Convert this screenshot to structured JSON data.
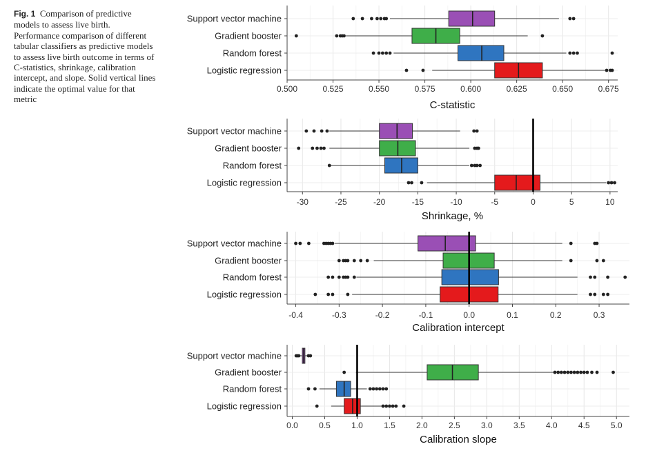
{
  "caption": {
    "label": "Fig. 1",
    "text": "Comparison of predictive models to assess live birth. Performance comparison of different tabular classifiers as predictive models to assess live birth outcome in terms of C-statistics, shrinkage, calibration intercept, and slope. Solid vertical lines indicate the optimal value for that metric"
  },
  "colors": {
    "Support vector machine": "#9a4fb5",
    "Gradient booster": "#3fae49",
    "Random forest": "#2f75c0",
    "Logistic regression": "#e41a1c"
  },
  "chart_data": [
    {
      "type": "boxplot",
      "xlabel": "C-statistic",
      "xlim": [
        0.5,
        0.68
      ],
      "ticks": [
        0.5,
        0.525,
        0.55,
        0.575,
        0.6,
        0.625,
        0.65,
        0.675
      ],
      "tick_labels": [
        "0.500",
        "0.525",
        "0.550",
        "0.575",
        "0.600",
        "0.625",
        "0.650",
        "0.675"
      ],
      "ref_line": null,
      "categories": [
        "Support vector machine",
        "Gradient booster",
        "Random forest",
        "Logistic regression"
      ],
      "series": [
        {
          "category": "Support vector machine",
          "whisker_low": 0.556,
          "q1": 0.588,
          "median": 0.601,
          "q3": 0.613,
          "whisker_high": 0.648,
          "outliers": [
            0.536,
            0.541,
            0.546,
            0.549,
            0.551,
            0.553,
            0.554,
            0.654,
            0.656
          ]
        },
        {
          "category": "Gradient booster",
          "whisker_low": 0.532,
          "q1": 0.568,
          "median": 0.581,
          "q3": 0.594,
          "whisker_high": 0.631,
          "outliers": [
            0.505,
            0.527,
            0.529,
            0.53,
            0.531,
            0.639
          ]
        },
        {
          "category": "Random forest",
          "whisker_low": 0.558,
          "q1": 0.593,
          "median": 0.606,
          "q3": 0.618,
          "whisker_high": 0.652,
          "outliers": [
            0.547,
            0.55,
            0.552,
            0.554,
            0.556,
            0.654,
            0.656,
            0.658,
            0.677
          ]
        },
        {
          "category": "Logistic regression",
          "whisker_low": 0.579,
          "q1": 0.613,
          "median": 0.626,
          "q3": 0.639,
          "whisker_high": 0.673,
          "outliers": [
            0.565,
            0.574,
            0.674,
            0.676,
            0.677
          ]
        }
      ]
    },
    {
      "type": "boxplot",
      "xlabel": "Shrinkage, %",
      "xlim": [
        -32,
        11
      ],
      "ticks": [
        -30,
        -25,
        -20,
        -15,
        -10,
        -5,
        0,
        5,
        10
      ],
      "tick_labels": [
        "-30",
        "-25",
        "-20",
        "-15",
        "-10",
        "-5",
        "0",
        "5",
        "10"
      ],
      "ref_line": 0,
      "categories": [
        "Support vector machine",
        "Gradient booster",
        "Random forest",
        "Logistic regression"
      ],
      "series": [
        {
          "category": "Support vector machine",
          "whisker_low": -26.5,
          "q1": -20,
          "median": -17.7,
          "q3": -15.7,
          "whisker_high": -9.5,
          "outliers": [
            -29.5,
            -28.5,
            -27.5,
            -26.8,
            -7.7,
            -7.3
          ]
        },
        {
          "category": "Gradient booster",
          "whisker_low": -26.5,
          "q1": -20,
          "median": -17.6,
          "q3": -15.3,
          "whisker_high": -8.3,
          "outliers": [
            -30.5,
            -28.7,
            -28.1,
            -27.6,
            -27.2,
            -7.6,
            -7.3,
            -7.1
          ]
        },
        {
          "category": "Random forest",
          "whisker_low": -26.5,
          "q1": -19.3,
          "median": -17.1,
          "q3": -15,
          "whisker_high": -8.3,
          "outliers": [
            -26.5,
            -8,
            -7.6,
            -7.3,
            -6.9
          ]
        },
        {
          "category": "Logistic regression",
          "whisker_low": -13.8,
          "q1": -5,
          "median": -2.2,
          "q3": 0.9,
          "whisker_high": 9.5,
          "outliers": [
            -16.2,
            -15.8,
            -14.5,
            9.8,
            10.2,
            10.6
          ]
        }
      ]
    },
    {
      "type": "boxplot",
      "xlabel": "Calibration intercept",
      "xlim": [
        -0.42,
        0.37
      ],
      "ticks": [
        -0.4,
        -0.3,
        -0.2,
        -0.1,
        0.0,
        0.1,
        0.2,
        0.3
      ],
      "tick_labels": [
        "-0.4",
        "-0.3",
        "-0.2",
        "-0.1",
        "0.0",
        "0.1",
        "0.2",
        "0.3"
      ],
      "ref_line": 0,
      "categories": [
        "Support vector machine",
        "Gradient booster",
        "Random forest",
        "Logistic regression"
      ],
      "series": [
        {
          "category": "Support vector machine",
          "whisker_low": -0.31,
          "q1": -0.118,
          "median": -0.055,
          "q3": 0.015,
          "whisker_high": 0.215,
          "outliers": [
            -0.4,
            -0.39,
            -0.37,
            -0.335,
            -0.33,
            -0.325,
            -0.32,
            -0.315,
            0.235,
            0.29,
            0.295
          ]
        },
        {
          "category": "Gradient booster",
          "whisker_low": -0.22,
          "q1": -0.06,
          "median": 0,
          "q3": 0.058,
          "whisker_high": 0.215,
          "outliers": [
            -0.3,
            -0.29,
            -0.285,
            -0.28,
            -0.265,
            -0.25,
            -0.235,
            0.235,
            0.295,
            0.31
          ]
        },
        {
          "category": "Random forest",
          "whisker_low": -0.26,
          "q1": -0.063,
          "median": 0,
          "q3": 0.068,
          "whisker_high": 0.25,
          "outliers": [
            -0.325,
            -0.315,
            -0.3,
            -0.29,
            -0.285,
            -0.28,
            -0.265,
            0.28,
            0.29,
            0.32,
            0.36
          ]
        },
        {
          "category": "Logistic regression",
          "whisker_low": -0.27,
          "q1": -0.067,
          "median": 0,
          "q3": 0.067,
          "whisker_high": 0.25,
          "outliers": [
            -0.355,
            -0.325,
            -0.315,
            -0.28,
            0.28,
            0.29,
            0.31,
            0.32
          ]
        }
      ]
    },
    {
      "type": "boxplot",
      "xlabel": "Calibration slope",
      "xlim": [
        -0.08,
        5.2
      ],
      "ticks": [
        0,
        0.5,
        1,
        1.5,
        2,
        2.5,
        3,
        3.5,
        4,
        4.5,
        5
      ],
      "tick_labels": [
        "0.0",
        "0.5",
        "1.0",
        "1.5",
        "2.0",
        "2.5",
        "3.0",
        "3.5",
        "4.0",
        "4.5",
        "5.0"
      ],
      "ref_line": 1,
      "categories": [
        "Support vector machine",
        "Gradient booster",
        "Random forest",
        "Logistic regression"
      ],
      "series": [
        {
          "category": "Support vector machine",
          "whisker_low": 0.12,
          "q1": 0.155,
          "median": 0.175,
          "q3": 0.195,
          "whisker_high": 0.23,
          "outliers": [
            0.06,
            0.08,
            0.1,
            0.25,
            0.28
          ]
        },
        {
          "category": "Gradient booster",
          "whisker_low": 0.98,
          "q1": 2.08,
          "median": 2.47,
          "q3": 2.87,
          "whisker_high": 4.05,
          "outliers": [
            0.8,
            4.05,
            4.1,
            4.15,
            4.2,
            4.25,
            4.3,
            4.35,
            4.4,
            4.45,
            4.5,
            4.55,
            4.62,
            4.7,
            4.95
          ]
        },
        {
          "category": "Random forest",
          "whisker_low": 0.42,
          "q1": 0.68,
          "median": 0.8,
          "q3": 0.9,
          "whisker_high": 1.15,
          "outliers": [
            0.25,
            0.35,
            1.2,
            1.25,
            1.3,
            1.35,
            1.4,
            1.45
          ]
        },
        {
          "category": "Logistic regression",
          "whisker_low": 0.6,
          "q1": 0.8,
          "median": 0.93,
          "q3": 1.05,
          "whisker_high": 1.38,
          "outliers": [
            0.38,
            1.4,
            1.45,
            1.5,
            1.55,
            1.6,
            1.72
          ]
        }
      ]
    }
  ]
}
